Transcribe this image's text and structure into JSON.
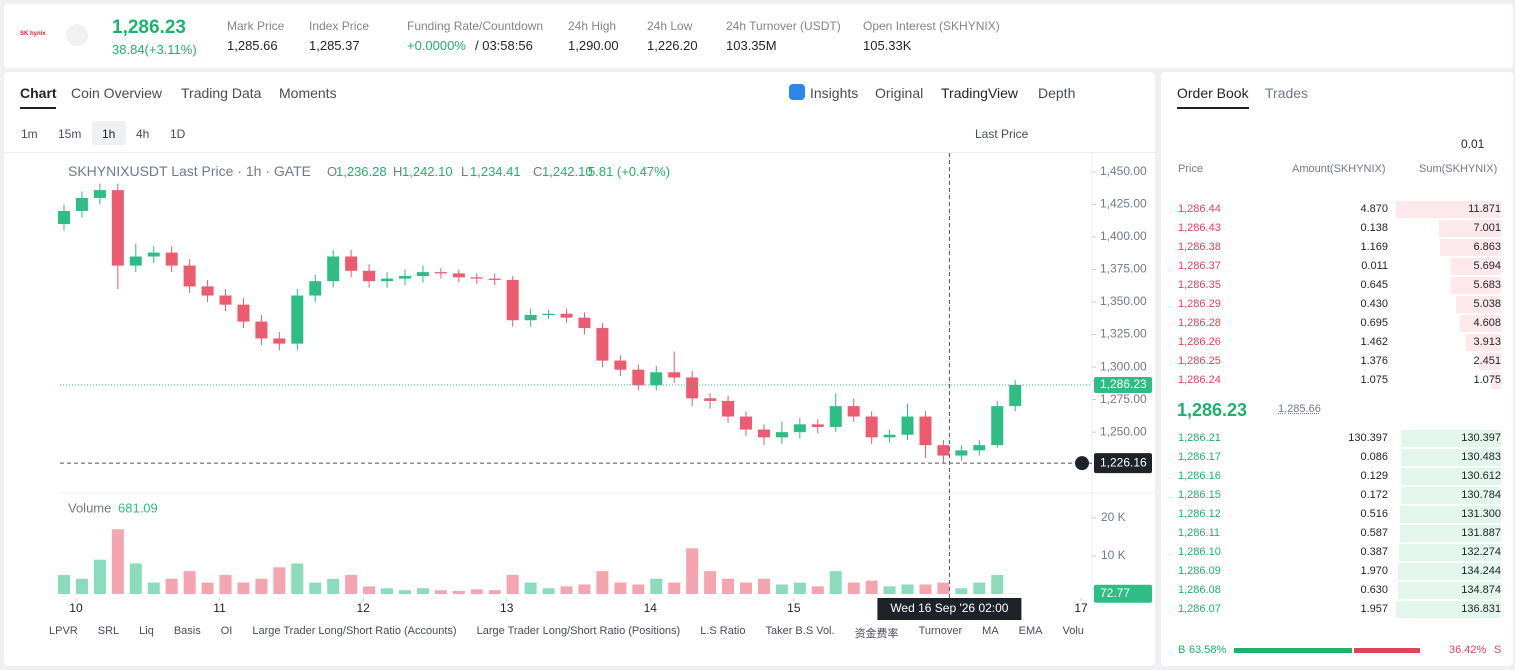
{
  "header": {
    "logo": "SK hynix",
    "price": "1,286.23",
    "change": "38.84(+3.11%)",
    "stats": [
      {
        "label": "Mark Price",
        "value": "1,285.66"
      },
      {
        "label": "Index Price",
        "value": "1,285.37"
      },
      {
        "label": "Funding Rate/Countdown",
        "value": "+0.0000%",
        "extra": "/ 03:58:56"
      },
      {
        "label": "24h High",
        "value": "1,290.00"
      },
      {
        "label": "24h Low",
        "value": "1,226.20"
      },
      {
        "label": "24h Turnover (USDT)",
        "value": "103.35M"
      },
      {
        "label": "Open Interest (SKHYNIX)",
        "value": "105.33K"
      }
    ]
  },
  "tabs": [
    "Chart",
    "Coin Overview",
    "Trading Data",
    "Moments"
  ],
  "views": [
    "Insights",
    "Original",
    "TradingView",
    "Depth"
  ],
  "intervals": [
    "1m",
    "15m",
    "1h",
    "4h",
    "1D"
  ],
  "price_source": "Last Price",
  "legend": {
    "title": "SKHYNIXUSDT Last Price · 1h · GATE",
    "ohlc": [
      {
        "key": "O",
        "value": "1,236.28"
      },
      {
        "key": "H",
        "value": "1,242.10"
      },
      {
        "key": "L",
        "value": "1,234.41"
      },
      {
        "key": "C",
        "value": "1,242.10"
      }
    ],
    "change": "5.81 (+0.47%)"
  },
  "chart_data": {
    "type": "candlestick",
    "x": [
      -2,
      1,
      4,
      7,
      10,
      13,
      16,
      19,
      22,
      25,
      28,
      31,
      34,
      37,
      40,
      43,
      46,
      49,
      52,
      55,
      58,
      61,
      64,
      67,
      70,
      73,
      76,
      79,
      82,
      85,
      88,
      91,
      94,
      97,
      100,
      103,
      106,
      109,
      112,
      115,
      118,
      121,
      124,
      127,
      130,
      133,
      136,
      139,
      142,
      145,
      148,
      151,
      154,
      157
    ],
    "open": [
      1410,
      1420,
      1430,
      1436,
      1378,
      1385,
      1388,
      1378,
      1362,
      1355,
      1348,
      1335,
      1322,
      1318,
      1355,
      1366,
      1385,
      1374,
      1366,
      1368,
      1370,
      1373,
      1372,
      1369,
      1368,
      1367,
      1336,
      1340,
      1341,
      1338,
      1330,
      1305,
      1298,
      1286,
      1296,
      1292,
      1276,
      1274,
      1262,
      1252,
      1246,
      1250,
      1256,
      1254,
      1270,
      1262,
      1246,
      1248,
      1262,
      1240,
      1232,
      1236,
      1240,
      1270
    ],
    "high": [
      1425,
      1435,
      1441,
      1441,
      1395,
      1393,
      1393,
      1383,
      1367,
      1360,
      1353,
      1340,
      1327,
      1360,
      1371,
      1390,
      1390,
      1379,
      1373,
      1375,
      1378,
      1376,
      1375,
      1372,
      1372,
      1370,
      1345,
      1344,
      1345,
      1342,
      1334,
      1309,
      1302,
      1301,
      1312,
      1297,
      1280,
      1278,
      1266,
      1256,
      1258,
      1261,
      1260,
      1280,
      1276,
      1266,
      1252,
      1272,
      1266,
      1244,
      1240,
      1244,
      1274,
      1290
    ],
    "low": [
      1405,
      1415,
      1425,
      1360,
      1373,
      1380,
      1373,
      1357,
      1350,
      1343,
      1330,
      1317,
      1313,
      1313,
      1350,
      1361,
      1369,
      1361,
      1361,
      1363,
      1365,
      1368,
      1365,
      1364,
      1363,
      1331,
      1331,
      1337,
      1334,
      1325,
      1300,
      1293,
      1282,
      1282,
      1288,
      1270,
      1268,
      1257,
      1247,
      1240,
      1241,
      1245,
      1249,
      1250,
      1258,
      1241,
      1242,
      1244,
      1230,
      1226.2,
      1228,
      1232,
      1238,
      1266
    ],
    "close": [
      1420,
      1430,
      1436,
      1378,
      1385,
      1388,
      1378,
      1362,
      1355,
      1348,
      1335,
      1322,
      1318,
      1355,
      1366,
      1385,
      1374,
      1366,
      1368,
      1370,
      1373,
      1372,
      1369,
      1368,
      1367,
      1336,
      1340,
      1341,
      1338,
      1330,
      1305,
      1298,
      1286,
      1296,
      1292,
      1276,
      1274,
      1262,
      1252,
      1246,
      1250,
      1256,
      1254,
      1270,
      1262,
      1246,
      1248,
      1262,
      1240,
      1232,
      1236,
      1240,
      1270,
      1286.23
    ],
    "volume": [
      5000,
      4000,
      9000,
      17000,
      8000,
      3000,
      4000,
      6000,
      3000,
      5000,
      3000,
      4000,
      7000,
      8000,
      3000,
      4000,
      5000,
      2000,
      1500,
      1000,
      1500,
      1000,
      800,
      1200,
      1000,
      5000,
      3000,
      1500,
      2000,
      2500,
      6000,
      3000,
      2500,
      4000,
      3000,
      12000,
      6000,
      4000,
      3000,
      4000,
      2500,
      3000,
      2000,
      6000,
      3000,
      3500,
      2000,
      2500,
      2500,
      3000,
      1500,
      3000,
      5000,
      72.77
    ],
    "xlim": [
      -2.5,
      169.5
    ],
    "xticks": [
      {
        "value": 0,
        "label": "10"
      },
      {
        "value": 24,
        "label": "11"
      },
      {
        "value": 48,
        "label": "12"
      },
      {
        "value": 72,
        "label": "13"
      },
      {
        "value": 96,
        "label": "14"
      },
      {
        "value": 120,
        "label": "15"
      },
      {
        "value": 168,
        "label": "17"
      }
    ],
    "ylim": [
      1204,
      1463
    ],
    "yticks": [
      {
        "value": 1250,
        "label": "1,250.00"
      },
      {
        "value": 1275,
        "label": "1,275.00"
      },
      {
        "value": 1300,
        "label": "1,300.00"
      },
      {
        "value": 1325,
        "label": "1,325.00"
      },
      {
        "value": 1350,
        "label": "1,350.00"
      },
      {
        "value": 1375,
        "label": "1,375.00"
      },
      {
        "value": 1400,
        "label": "1,400.00"
      },
      {
        "value": 1425,
        "label": "1,425.00"
      },
      {
        "value": 1450,
        "label": "1,450.00"
      }
    ],
    "volume_ylim": [
      0,
      26000
    ],
    "volume_yticks": [
      {
        "value": 10000,
        "label": "10 K"
      },
      {
        "value": 20000,
        "label": "20 K"
      }
    ],
    "volume_title": "Volume",
    "volume_value": "681.09",
    "last_price": {
      "value": 1286.23,
      "value_label": "1,286.23"
    },
    "crosshair": {
      "value": 1226.16,
      "value_label": "1,226.16",
      "x": 146,
      "x_label": "Wed 16 Sep '26   02:00"
    },
    "up_color": "#2ebd85",
    "down_color": "#ec5b70"
  },
  "indicators": [
    "LPVR",
    "SRL",
    "Liq",
    "Basis",
    "OI",
    "Large Trader Long/Short Ratio (Accounts)",
    "Large Trader Long/Short Ratio (Positions)",
    "L.S Ratio",
    "Taker B.S Vol.",
    "资金费率",
    "Turnover",
    "MA",
    "EMA",
    "Volu"
  ],
  "order_book": {
    "tabs": [
      "Order Book",
      "Trades"
    ],
    "precision": "0.01",
    "columns": [
      "Price",
      "Amount(SKHYNIX)",
      "Sum(SKHYNIX)"
    ],
    "asks": [
      [
        "1,286.44",
        "4.870",
        "11.871"
      ],
      [
        "1,286.43",
        "0.138",
        "7.001"
      ],
      [
        "1,286.38",
        "1.169",
        "6.863"
      ],
      [
        "1,286.37",
        "0.011",
        "5.694"
      ],
      [
        "1,286.35",
        "0.645",
        "5.683"
      ],
      [
        "1,286.29",
        "0.430",
        "5.038"
      ],
      [
        "1,286.28",
        "0.695",
        "4.608"
      ],
      [
        "1,286.26",
        "1.462",
        "3.913"
      ],
      [
        "1,286.25",
        "1.376",
        "2.451"
      ],
      [
        "1,286.24",
        "1.075",
        "1.075"
      ]
    ],
    "mid": {
      "price": "1,286.23",
      "mark": "1,285.66"
    },
    "bids": [
      [
        "1,286.21",
        "130.397",
        "130.397"
      ],
      [
        "1,286.17",
        "0.086",
        "130.483"
      ],
      [
        "1,286.16",
        "0.129",
        "130.612"
      ],
      [
        "1,286.15",
        "0.172",
        "130.784"
      ],
      [
        "1,286.12",
        "0.516",
        "131.300"
      ],
      [
        "1,286.11",
        "0.587",
        "131.887"
      ],
      [
        "1,286.10",
        "0.387",
        "132.274"
      ],
      [
        "1,286.09",
        "1.970",
        "134.244"
      ],
      [
        "1,286.08",
        "0.630",
        "134.874"
      ],
      [
        "1,286.07",
        "1.957",
        "136.831"
      ]
    ],
    "ratio": {
      "buy_label": "B",
      "buy": "63.58%",
      "sell": "36.42%",
      "sell_label": "S"
    }
  }
}
